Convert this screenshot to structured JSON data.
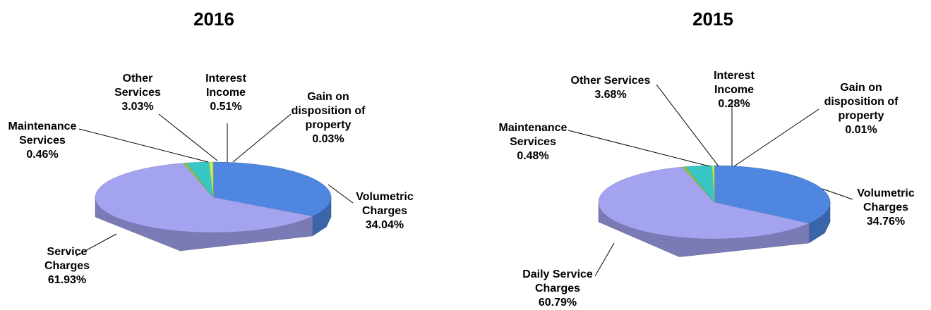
{
  "chart_data": [
    {
      "type": "pie",
      "title": "2016",
      "categories": [
        "Volumetric Charges",
        "Service Charges",
        "Maintenance Services",
        "Other Services",
        "Interest Income",
        "Gain on disposition of property"
      ],
      "values": [
        34.04,
        61.93,
        0.46,
        3.03,
        0.51,
        0.03
      ],
      "value_labels": [
        "34.04%",
        "61.93%",
        "0.46%",
        "3.03%",
        "0.51%",
        "0.03%"
      ],
      "colors": [
        "#4f86e0",
        "#a3a3f0",
        "#8fc43a",
        "#38c6c6",
        "#c8f060",
        "#f2f000"
      ]
    },
    {
      "type": "pie",
      "title": "2015",
      "categories": [
        "Volumetric Charges",
        "Daily Service Charges",
        "Maintenance Services",
        "Other Services",
        "Interest Income",
        "Gain on disposition of property"
      ],
      "values": [
        34.76,
        60.79,
        0.48,
        3.68,
        0.28,
        0.01
      ],
      "value_labels": [
        "34.76%",
        "60.79%",
        "0.48%",
        "3.68%",
        "0.28%",
        "0.01%"
      ],
      "colors": [
        "#4f86e0",
        "#a3a3f0",
        "#8fc43a",
        "#38c6c6",
        "#c8f060",
        "#f2f000"
      ]
    }
  ]
}
